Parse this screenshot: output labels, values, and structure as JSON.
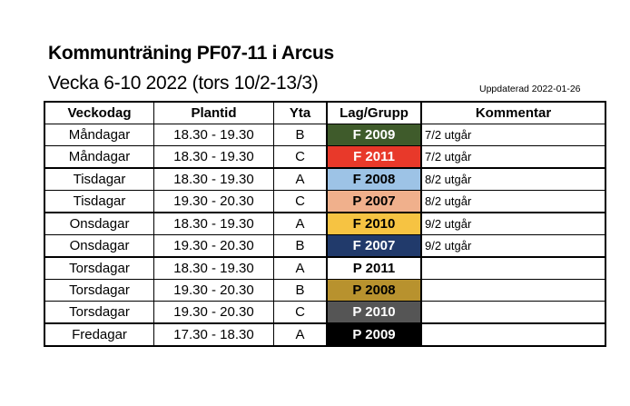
{
  "title": "Kommunträning PF07-11 i Arcus",
  "subtitle": "Vecka 6-10 2022 (tors 10/2-13/3)",
  "updated": "Uppdaterad 2022-01-26",
  "headers": [
    "Veckodag",
    "Plantid",
    "Yta",
    "Lag/Grupp",
    "Kommentar"
  ],
  "rows": [
    {
      "day": "Måndagar",
      "time": "18.30 - 19.30",
      "area": "B",
      "team": "F 2009",
      "comment": "7/2 utgår",
      "bg": "#3f5b2b",
      "fg": "#ffffff"
    },
    {
      "day": "Måndagar",
      "time": "18.30 - 19.30",
      "area": "C",
      "team": "F 2011",
      "comment": "7/2 utgår",
      "bg": "#e8392a",
      "fg": "#ffffff"
    },
    {
      "day": "Tisdagar",
      "time": "18.30 - 19.30",
      "area": "A",
      "team": "F 2008",
      "comment": "8/2 utgår",
      "bg": "#9dc3e6",
      "fg": "#000000"
    },
    {
      "day": "Tisdagar",
      "time": "19.30 - 20.30",
      "area": "C",
      "team": "P 2007",
      "comment": "8/2 utgår",
      "bg": "#f0b08c",
      "fg": "#000000"
    },
    {
      "day": "Onsdagar",
      "time": "18.30 - 19.30",
      "area": "A",
      "team": "F 2010",
      "comment": "9/2 utgår",
      "bg": "#f6c342",
      "fg": "#000000"
    },
    {
      "day": "Onsdagar",
      "time": "19.30 - 20.30",
      "area": "B",
      "team": "F 2007",
      "comment": "9/2 utgår",
      "bg": "#213a6b",
      "fg": "#ffffff"
    },
    {
      "day": "Torsdagar",
      "time": "18.30 - 19.30",
      "area": "A",
      "team": "P 2011",
      "comment": "",
      "bg": "#ffffff",
      "fg": "#000000"
    },
    {
      "day": "Torsdagar",
      "time": "19.30 - 20.30",
      "area": "B",
      "team": "P 2008",
      "comment": "",
      "bg": "#b8922e",
      "fg": "#000000"
    },
    {
      "day": "Torsdagar",
      "time": "19.30 - 20.30",
      "area": "C",
      "team": "P 2010",
      "comment": "",
      "bg": "#555555",
      "fg": "#ffffff"
    },
    {
      "day": "Fredagar",
      "time": "17.30 - 18.30",
      "area": "A",
      "team": "P 2009",
      "comment": "",
      "bg": "#000000",
      "fg": "#ffffff"
    }
  ]
}
